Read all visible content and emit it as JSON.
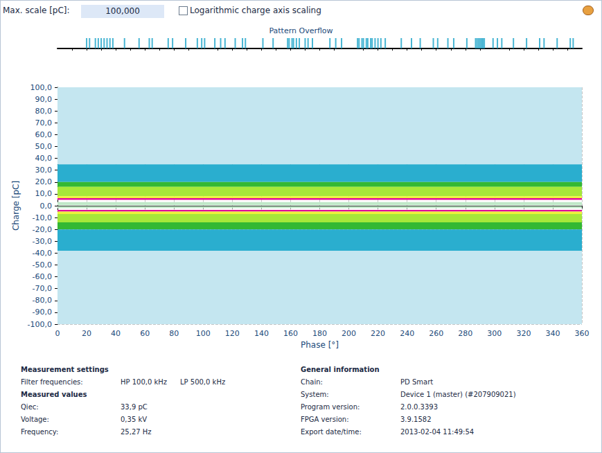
{
  "header": {
    "max_scale_label": "Max. scale [pC]:",
    "max_scale_value": "100,000",
    "checkbox": {
      "label": "Logarithmic charge axis scaling",
      "checked": false
    }
  },
  "chart_data": [
    {
      "type": "rug",
      "title": "Pattern Overflow",
      "color": "#1aa3c8",
      "xlim": [
        0,
        360
      ],
      "x": [
        20,
        22,
        26,
        28,
        30,
        32,
        34,
        36,
        38,
        46,
        56,
        63,
        65,
        76,
        79,
        88,
        96,
        99,
        101,
        108,
        112,
        115,
        122,
        127,
        129,
        141,
        148,
        158,
        159,
        161,
        162,
        164,
        166,
        170,
        172,
        175,
        187,
        191,
        195,
        206,
        207,
        209,
        210,
        212,
        213,
        215,
        216,
        218,
        220,
        222,
        225,
        236,
        243,
        249,
        258,
        261,
        268,
        272,
        281,
        287,
        288,
        289,
        290,
        291,
        292,
        293,
        299,
        302,
        305,
        313,
        322,
        331,
        334,
        343,
        352,
        354
      ]
    },
    {
      "type": "bands",
      "xlabel": "Phase [°]",
      "ylabel": "Charge [pC]",
      "xlim": [
        0,
        360
      ],
      "ylim": [
        -100,
        100
      ],
      "xticks": [
        0,
        20,
        40,
        60,
        80,
        100,
        120,
        140,
        160,
        180,
        200,
        220,
        240,
        260,
        280,
        300,
        320,
        340,
        360
      ],
      "yticks": [
        {
          "value": -100,
          "label": "-100,0"
        },
        {
          "value": -90,
          "label": "-90,0"
        },
        {
          "value": -80,
          "label": "-80,0"
        },
        {
          "value": -70,
          "label": "-70,0"
        },
        {
          "value": -60,
          "label": "-60,0"
        },
        {
          "value": -50,
          "label": "-50,0"
        },
        {
          "value": -40,
          "label": "-40,0"
        },
        {
          "value": -30,
          "label": "-30,0"
        },
        {
          "value": -20,
          "label": "-20,0"
        },
        {
          "value": -10,
          "label": "-10,0"
        },
        {
          "value": 0,
          "label": "0,0"
        },
        {
          "value": 10,
          "label": "10,0"
        },
        {
          "value": 20,
          "label": "20,0"
        },
        {
          "value": 30,
          "label": "30,0"
        },
        {
          "value": 40,
          "label": "40,0"
        },
        {
          "value": 50,
          "label": "50,0"
        },
        {
          "value": 60,
          "label": "60,0"
        },
        {
          "value": 70,
          "label": "70,0"
        },
        {
          "value": 80,
          "label": "80,0"
        },
        {
          "value": 90,
          "label": "90,0"
        },
        {
          "value": 100,
          "label": "100,0"
        }
      ],
      "grid": true,
      "bands": [
        {
          "from": 35,
          "to": 100,
          "color": "#c4e6f0"
        },
        {
          "from": 20,
          "to": 35,
          "color": "#2aaecf"
        },
        {
          "from": 16,
          "to": 20,
          "color": "#33b833"
        },
        {
          "from": 8,
          "to": 16,
          "color": "#a6e83a"
        },
        {
          "from": 6.5,
          "to": 8,
          "color": "#eef23a"
        },
        {
          "from": 5,
          "to": 6.5,
          "color": "#e0109a"
        },
        {
          "from": 0.5,
          "to": 3,
          "color": "#bfe8c8"
        },
        {
          "from": -2,
          "to": -0.5,
          "color": "#bfe8c8"
        },
        {
          "from": -5,
          "to": -3.5,
          "color": "#e0109a"
        },
        {
          "from": -7,
          "to": -5,
          "color": "#eef23a"
        },
        {
          "from": -14,
          "to": -7,
          "color": "#a6e83a"
        },
        {
          "from": -20,
          "to": -14,
          "color": "#33b833"
        },
        {
          "from": -38,
          "to": -20,
          "color": "#2aaecf"
        },
        {
          "from": -100,
          "to": -38,
          "color": "#c4e6f0"
        }
      ]
    }
  ],
  "info": {
    "settings": {
      "heading": "Measurement settings",
      "rows": [
        [
          "Filter frequencies:",
          "HP 100,0 kHz",
          "LP 500,0 kHz"
        ]
      ]
    },
    "measured": {
      "heading": "Measured values",
      "rows": [
        [
          "Qiec:",
          "33,9 pC"
        ],
        [
          "Voltage:",
          "0,35 kV"
        ],
        [
          "Frequency:",
          "25,27 Hz"
        ]
      ]
    },
    "general": {
      "heading": "General information",
      "rows": [
        [
          "Chain:",
          "PD Smart"
        ],
        [
          "System:",
          "Device 1 (master) (#207909021)"
        ],
        [
          "Program version:",
          "2.0.0.3393"
        ],
        [
          "FPGA version:",
          "3.9.1582"
        ],
        [
          "Export date/time:",
          "2013-02-04 11:49:54"
        ]
      ]
    }
  }
}
